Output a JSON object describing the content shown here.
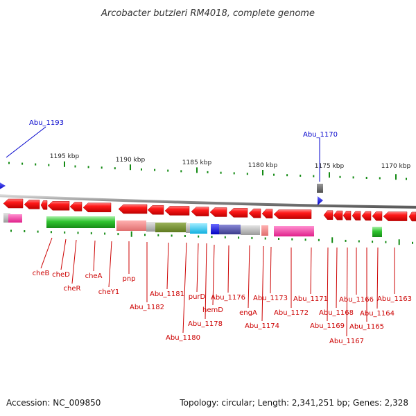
{
  "title": "Arcobacter butzleri RM4018, complete genome",
  "colors": {
    "forward_gene": "#ff1010",
    "reverse_gene": "#ff1010",
    "callout": "#0000cc",
    "label": "#cc0000",
    "tick": "#138a13",
    "backbone": "#888888"
  },
  "ruler": {
    "ticks_kbp": [
      1195,
      1190,
      1185,
      1180,
      1175,
      1170
    ],
    "unit": "kbp"
  },
  "callouts": [
    {
      "label": "Abu_1193",
      "side": "upper-left"
    },
    {
      "label": "Abu_1170",
      "side": "upper-right"
    }
  ],
  "gene_labels": [
    "cheB",
    "cheD",
    "cheR",
    "cheA",
    "cheY1",
    "pnp",
    "Abu_1182",
    "Abu_1181",
    "Abu_1180",
    "purD",
    "Abu_1178",
    "hemD",
    "Abu_1176",
    "engA",
    "Abu_1174",
    "Abu_1173",
    "Abu_1172",
    "Abu_1171",
    "Abu_1169",
    "Abu_1168",
    "Abu_1167",
    "Abu_1166",
    "Abu_1165",
    "Abu_1164",
    "Abu_1163"
  ],
  "footer": {
    "accession": "Accession: NC_009850",
    "summary": "Topology: circular; Length: 2,341,251 bp; Genes: 2,328"
  }
}
